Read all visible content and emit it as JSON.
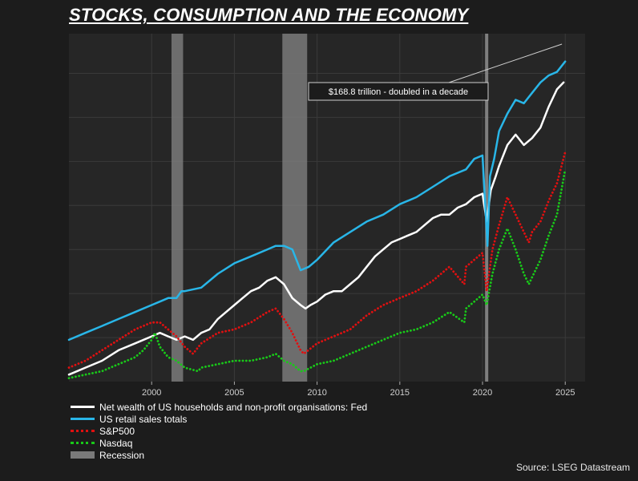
{
  "title": "STOCKS, CONSUMPTION AND THE ECONOMY",
  "source": "Source: LSEG Datastream",
  "colors": {
    "background": "#1c1c1c",
    "plot_bg": "#262626",
    "wealth": "#ffffff",
    "retail": "#29b6e8",
    "sp500": "#e01010",
    "nasdaq": "#19c919",
    "recession": "#7a7a7a",
    "covid_marker": "#8a8a8a"
  },
  "chart_data": {
    "type": "line",
    "xlabel": "",
    "ylabel": "",
    "x_ticks": [
      2000,
      2005,
      2010,
      2015,
      2020,
      2025
    ],
    "xlim": [
      1995.0,
      2026.2
    ],
    "ylim": [
      0,
      100
    ],
    "grid": true,
    "y_scale": "indexed, unlabeled",
    "recessions": [
      [
        2001.2,
        2001.9
      ],
      [
        2007.9,
        2009.4
      ]
    ],
    "event_lines": [
      2020.25
    ],
    "annotation": {
      "text": "$168.8 trillion - doubled in a decade",
      "x": 2024.8,
      "y": 97
    },
    "legend_position": "bottom-left",
    "series": [
      {
        "name": "Net wealth of US households and non-profit organisations: Fed",
        "style": "solid",
        "x": [
          1995,
          1996,
          1997,
          1998,
          1999,
          2000,
          2000.5,
          2001,
          2001.5,
          2002,
          2002.5,
          2003,
          2003.5,
          2004,
          2004.5,
          2005,
          2005.5,
          2006,
          2006.5,
          2007,
          2007.5,
          2008,
          2008.5,
          2009,
          2009.3,
          2009.6,
          2010,
          2010.5,
          2011,
          2011.5,
          2012,
          2012.5,
          2013,
          2013.5,
          2014,
          2014.5,
          2015,
          2015.5,
          2016,
          2016.5,
          2017,
          2017.5,
          2018,
          2018.5,
          2019,
          2019.5,
          2020,
          2020.25,
          2020.5,
          2020.8,
          2021,
          2021.5,
          2022,
          2022.5,
          2023,
          2023.5,
          2024,
          2024.5,
          2024.9
        ],
        "y": [
          2,
          4,
          6,
          9,
          11,
          13,
          14,
          13,
          12,
          13,
          12,
          14,
          15,
          18,
          20,
          22,
          24,
          26,
          27,
          29,
          30,
          28,
          24,
          22,
          21,
          22,
          23,
          25,
          26,
          26,
          28,
          30,
          33,
          36,
          38,
          40,
          41,
          42,
          43,
          45,
          47,
          48,
          48,
          50,
          51,
          53,
          54,
          46,
          55,
          59,
          62,
          68,
          71,
          68,
          70,
          73,
          79,
          84,
          86
        ]
      },
      {
        "name": "US retail sales totals",
        "style": "solid",
        "x": [
          1995,
          1996,
          1997,
          1998,
          1999,
          2000,
          2000.5,
          2001,
          2001.5,
          2001.8,
          2002,
          2003,
          2004,
          2005,
          2006,
          2007,
          2007.5,
          2008,
          2008.5,
          2009,
          2009.5,
          2010,
          2011,
          2012,
          2013,
          2014,
          2015,
          2016,
          2017,
          2018,
          2019,
          2019.5,
          2020,
          2020.3,
          2020.45,
          2020.7,
          2021,
          2021.5,
          2022,
          2022.5,
          2023,
          2023.5,
          2024,
          2024.5,
          2025
        ],
        "y": [
          12,
          14,
          16,
          18,
          20,
          22,
          23,
          24,
          24,
          26,
          26,
          27,
          31,
          34,
          36,
          38,
          39,
          39,
          38,
          32,
          33,
          35,
          40,
          43,
          46,
          48,
          51,
          53,
          56,
          59,
          61,
          64,
          65,
          39,
          59,
          64,
          72,
          77,
          81,
          80,
          83,
          86,
          88,
          89,
          92
        ]
      },
      {
        "name": "S&P500",
        "style": "dotted",
        "x": [
          1995,
          1996,
          1997,
          1998,
          1999,
          2000,
          2000.5,
          2001,
          2001.5,
          2002,
          2002.5,
          2003,
          2004,
          2005,
          2006,
          2007,
          2007.5,
          2008,
          2008.5,
          2009,
          2009.2,
          2010,
          2011,
          2012,
          2013,
          2014,
          2015,
          2016,
          2017,
          2018,
          2018.9,
          2019,
          2019.5,
          2020,
          2020.25,
          2020.6,
          2021,
          2021.5,
          2022,
          2022.5,
          2022.8,
          2023,
          2023.5,
          2024,
          2024.5,
          2025
        ],
        "y": [
          4,
          6,
          9,
          12,
          15,
          17,
          17,
          15,
          13,
          10,
          8,
          11,
          14,
          15,
          17,
          20,
          21,
          18,
          14,
          9,
          8,
          11,
          13,
          15,
          19,
          22,
          24,
          26,
          29,
          33,
          28,
          33,
          35,
          37,
          26,
          38,
          45,
          53,
          48,
          43,
          40,
          43,
          46,
          52,
          57,
          66
        ]
      },
      {
        "name": "Nasdaq",
        "style": "dotted",
        "x": [
          1995,
          1996,
          1997,
          1998,
          1999,
          1999.5,
          2000,
          2000.2,
          2000.5,
          2001,
          2001.5,
          2002,
          2002.8,
          2003,
          2004,
          2005,
          2006,
          2007,
          2007.5,
          2008,
          2008.5,
          2009,
          2009.2,
          2010,
          2011,
          2012,
          2013,
          2014,
          2015,
          2016,
          2017,
          2018,
          2018.9,
          2019,
          2019.5,
          2020,
          2020.25,
          2020.6,
          2021,
          2021.5,
          2022,
          2022.5,
          2022.8,
          2023,
          2023.5,
          2024,
          2024.5,
          2025
        ],
        "y": [
          1,
          2,
          3,
          5,
          7,
          9,
          12,
          14,
          10,
          7,
          6,
          4,
          3,
          4,
          5,
          6,
          6,
          7,
          8,
          6,
          5,
          3,
          3,
          5,
          6,
          8,
          10,
          12,
          14,
          15,
          17,
          20,
          17,
          21,
          23,
          25,
          22,
          31,
          38,
          44,
          38,
          31,
          28,
          30,
          35,
          42,
          48,
          61
        ]
      }
    ]
  }
}
